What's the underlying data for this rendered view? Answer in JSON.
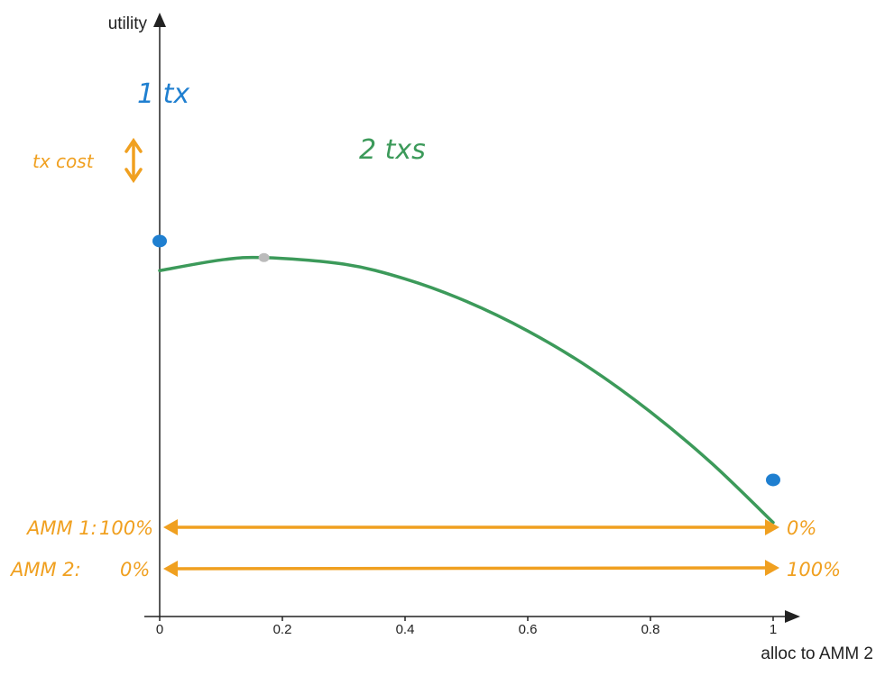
{
  "chart_data": {
    "type": "line",
    "xlabel": "alloc to AMM 2",
    "ylabel": "utility",
    "xlim": [
      0,
      1
    ],
    "x_ticks": [
      "0",
      "0.2",
      "0.4",
      "0.6",
      "0.8",
      "1"
    ],
    "y_ticks": [],
    "grid": false,
    "series": [
      {
        "name": "2 txs",
        "color": "#3c9a5a",
        "x": [
          0,
          0.1,
          0.17,
          0.3,
          0.4,
          0.5,
          0.6,
          0.7,
          0.8,
          0.9,
          1.0
        ],
        "y": [
          0.585,
          0.603,
          0.607,
          0.596,
          0.571,
          0.533,
          0.483,
          0.421,
          0.346,
          0.259,
          0.159
        ]
      }
    ],
    "points": [
      {
        "name": "1 tx",
        "x": 0,
        "y": 0.635,
        "color": "#1f7fd0"
      },
      {
        "name": "1 tx",
        "x": 1,
        "y": 0.231,
        "color": "#1f7fd0"
      },
      {
        "name": "peak",
        "x": 0.17,
        "y": 0.607,
        "color": "#bbbbbb"
      }
    ],
    "annotations": {
      "one_tx": "1 tx",
      "two_txs": "2 txs",
      "tx_cost": "tx cost",
      "amm1_label": "AMM 1:",
      "amm1_left": "100%",
      "amm1_right": "0%",
      "amm2_label": "AMM 2:",
      "amm2_left": "0%",
      "amm2_right": "100%"
    },
    "colors": {
      "green": "#3c9a5a",
      "blue": "#1f7fd0",
      "orange": "#f0a020",
      "axis": "#222222"
    }
  }
}
